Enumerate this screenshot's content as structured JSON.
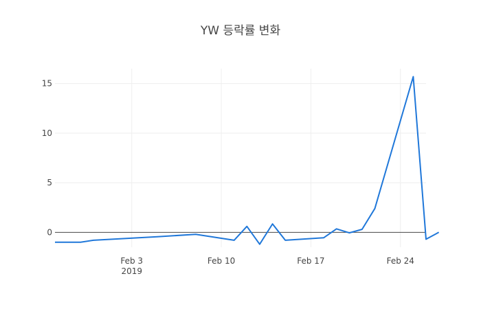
{
  "chart_data": {
    "type": "line",
    "title": "YW 등락률 변화",
    "xlabel": "",
    "ylabel": "",
    "grid": true,
    "legend": "none",
    "xlim": [
      "2019-01-28",
      "2019-02-26"
    ],
    "ylim": [
      -1.5,
      16.5
    ],
    "x_ticks": [
      {
        "date": "2019-02-03",
        "label": "Feb 3",
        "sublabel": "2019"
      },
      {
        "date": "2019-02-10",
        "label": "Feb 10",
        "sublabel": ""
      },
      {
        "date": "2019-02-17",
        "label": "Feb 17",
        "sublabel": ""
      },
      {
        "date": "2019-02-24",
        "label": "Feb 24",
        "sublabel": ""
      }
    ],
    "y_ticks": [
      0,
      5,
      10,
      15
    ],
    "color": "#1f77d9",
    "series": [
      {
        "x": [
          "2019-01-28",
          "2019-01-30",
          "2019-01-31",
          "2019-02-05",
          "2019-02-08",
          "2019-02-11",
          "2019-02-12",
          "2019-02-13",
          "2019-02-14",
          "2019-02-15",
          "2019-02-18",
          "2019-02-19",
          "2019-02-20",
          "2019-02-21",
          "2019-02-22",
          "2019-02-25",
          "2019-02-26",
          "2019-02-27"
        ],
        "values": [
          -1.0,
          -1.0,
          -0.8,
          -0.45,
          -0.2,
          -0.8,
          0.6,
          -1.2,
          0.85,
          -0.8,
          -0.55,
          0.35,
          -0.05,
          0.3,
          2.4,
          15.7,
          -0.7,
          0.0
        ]
      }
    ]
  }
}
